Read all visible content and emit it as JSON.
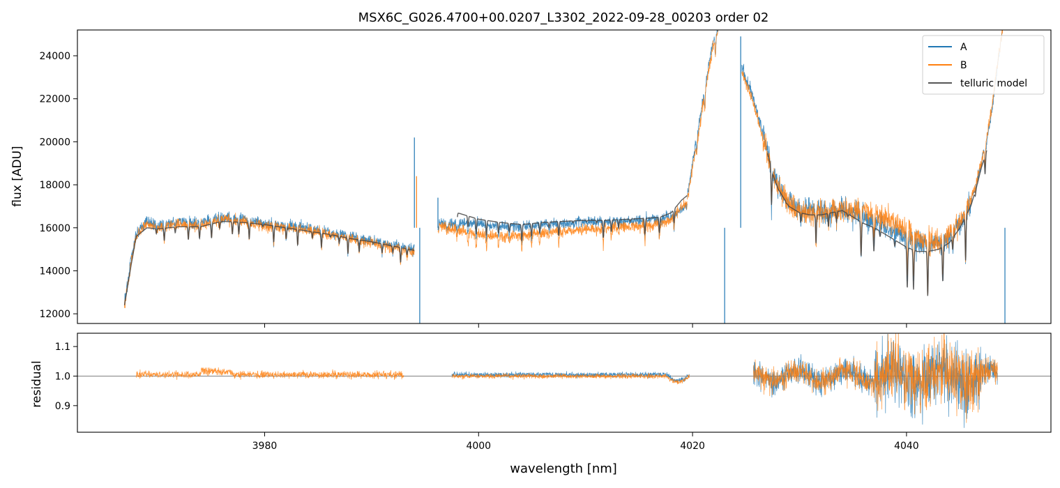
{
  "chart_data": [
    {
      "type": "line",
      "title": "MSX6C_G026.4700+00.0207_L3302_2022-09-28_00203  order 02",
      "xlabel": "",
      "ylabel": "flux [ADU]",
      "xlim": [
        3962.5,
        4053.5
      ],
      "ylim": [
        11550,
        25200
      ],
      "yticks": [
        12000,
        14000,
        16000,
        18000,
        20000,
        22000,
        24000
      ],
      "ytick_labels": [
        "12000",
        "14000",
        "16000",
        "18000",
        "20000",
        "22000",
        "24000"
      ],
      "xticks": [
        3980,
        4000,
        4020,
        4040
      ],
      "legend": {
        "position": "top-right",
        "entries": [
          "A",
          "B",
          "telluric model"
        ]
      },
      "segments": [
        {
          "x": [
            3966.9,
            3967.5,
            3968.0,
            3969.0,
            3970.0,
            3972.0,
            3974.0,
            3976.0,
            3978.0,
            3980.0,
            3982.0,
            3984.0,
            3986.0,
            3988.0,
            3990.0,
            3992.0,
            3994.0
          ],
          "A": [
            12500,
            14500,
            15700,
            16300,
            16100,
            16300,
            16200,
            16500,
            16400,
            16200,
            16100,
            16000,
            15800,
            15600,
            15400,
            15200,
            15000
          ],
          "B": [
            12400,
            14300,
            15600,
            16200,
            16000,
            16200,
            16100,
            16400,
            16300,
            16100,
            16000,
            15900,
            15700,
            15500,
            15300,
            15100,
            14900
          ],
          "telluric": [
            12400,
            14200,
            15600,
            16000,
            15950,
            16050,
            16050,
            16300,
            16250,
            16150,
            16000,
            15850,
            15700,
            15500,
            15350,
            15150,
            14950
          ]
        },
        {
          "x": [
            3996.2,
            3997.0,
            3998.0,
            4000.0,
            4002.0,
            4004.0,
            4006.0,
            4008.0,
            4010.0,
            4012.0,
            4014.0,
            4016.0,
            4017.0,
            4018.0,
            4018.5,
            4019.0,
            4019.5
          ],
          "A": [
            16300,
            16200,
            16200,
            16200,
            16100,
            16050,
            16150,
            16200,
            16300,
            16300,
            16350,
            16400,
            16450,
            16500,
            16700,
            16900,
            17000
          ],
          "B": [
            16100,
            16000,
            15900,
            15700,
            15600,
            15650,
            15750,
            15850,
            15950,
            16000,
            16050,
            16100,
            16200,
            16400,
            16700,
            17000,
            17200
          ],
          "telluric": [
            null,
            null,
            16700,
            16400,
            16250,
            16150,
            16250,
            16300,
            16350,
            16350,
            16400,
            16450,
            16500,
            16700,
            17000,
            17300,
            17500
          ]
        },
        {
          "x": [
            4019.5,
            4020.0,
            4020.5,
            4021.0,
            4021.5,
            4022.0,
            4022.4
          ],
          "A": [
            17500,
            19000,
            20500,
            22000,
            23500,
            24800,
            25300
          ],
          "B": [
            17300,
            18800,
            20300,
            21800,
            23300,
            24600,
            25300
          ],
          "telluric": [
            null,
            null,
            null,
            null,
            null,
            null,
            null
          ]
        },
        {
          "x": [
            4024.6,
            4025.0,
            4025.5,
            4026.0,
            4026.5,
            4027.0,
            4027.5,
            4028.0,
            4029.0,
            4030.0,
            4031.0,
            4032.0,
            4033.0,
            4034.0,
            4035.0,
            4036.0,
            4037.0,
            4038.0,
            4039.0,
            4040.0,
            4041.0,
            4042.0,
            4043.0,
            4044.0,
            4045.0,
            4046.0,
            4046.5,
            4047.0,
            4047.5,
            4048.0,
            4048.5,
            4049.0
          ],
          "A": [
            23500,
            23000,
            22300,
            21500,
            20500,
            19500,
            18700,
            18000,
            17200,
            16900,
            16800,
            16800,
            16800,
            16900,
            16700,
            16500,
            16300,
            16100,
            15800,
            15500,
            15300,
            15200,
            15300,
            15500,
            16200,
            17200,
            18000,
            19000,
            20000,
            21500,
            23500,
            25300
          ],
          "B": [
            23200,
            22800,
            22100,
            21300,
            20300,
            19400,
            18600,
            17900,
            17100,
            16800,
            16700,
            16700,
            16750,
            16850,
            16800,
            16800,
            16700,
            16500,
            16200,
            15900,
            15600,
            15400,
            15400,
            15600,
            16300,
            17300,
            18100,
            19100,
            20200,
            21700,
            23700,
            25300
          ],
          "telluric": [
            null,
            null,
            null,
            null,
            null,
            19500,
            18500,
            17800,
            17000,
            16700,
            16600,
            16600,
            16700,
            16800,
            16500,
            16200,
            16000,
            15700,
            15400,
            15100,
            14900,
            14900,
            15000,
            15300,
            16000,
            17000,
            17800,
            18800,
            19600,
            null,
            null,
            null
          ]
        }
      ],
      "spikes": [
        {
          "series": "A",
          "x": 3994.0,
          "y": 20200
        },
        {
          "series": "B",
          "x": 3994.2,
          "y": 18400
        },
        {
          "series": "A",
          "x": 3996.2,
          "y": 17400
        },
        {
          "series": "A",
          "x": 4024.5,
          "y": 24900
        },
        {
          "series": "A",
          "x": 4023.0,
          "y": 11550
        },
        {
          "series": "A",
          "x": 3994.5,
          "y": 11550
        },
        {
          "series": "A",
          "x": 4049.2,
          "y": 11550
        }
      ]
    },
    {
      "type": "line",
      "title": "",
      "xlabel": "wavelength [nm]",
      "ylabel": "residual",
      "xlim": [
        3962.5,
        4053.5
      ],
      "ylim": [
        0.81,
        1.145
      ],
      "yticks": [
        0.9,
        1.0,
        1.1
      ],
      "ytick_labels": [
        "0.9",
        "1.0",
        "1.1"
      ],
      "xticks": [
        3980,
        4000,
        4020,
        4040
      ],
      "xtick_labels": [
        "3980",
        "4000",
        "4020",
        "4040"
      ],
      "reference_line": 1.0,
      "segments": [
        {
          "x": [
            3968.0,
            3993.0
          ],
          "series": [
            "B"
          ],
          "mean": [
            1.005,
            1.0
          ],
          "noise": 0.015
        },
        {
          "x": [
            3997.5,
            4019.7
          ],
          "series": [
            "A",
            "B"
          ],
          "mean": [
            1.005,
            1.0
          ],
          "noise": 0.01
        },
        {
          "x": [
            4025.7,
            4048.5
          ],
          "series": [
            "A",
            "B"
          ],
          "mean": [
            1.0,
            1.0
          ],
          "noise": 0.05
        }
      ]
    }
  ],
  "colors": {
    "A": "#1f77b4",
    "B": "#ff7f0e",
    "telluric": "#444444"
  }
}
